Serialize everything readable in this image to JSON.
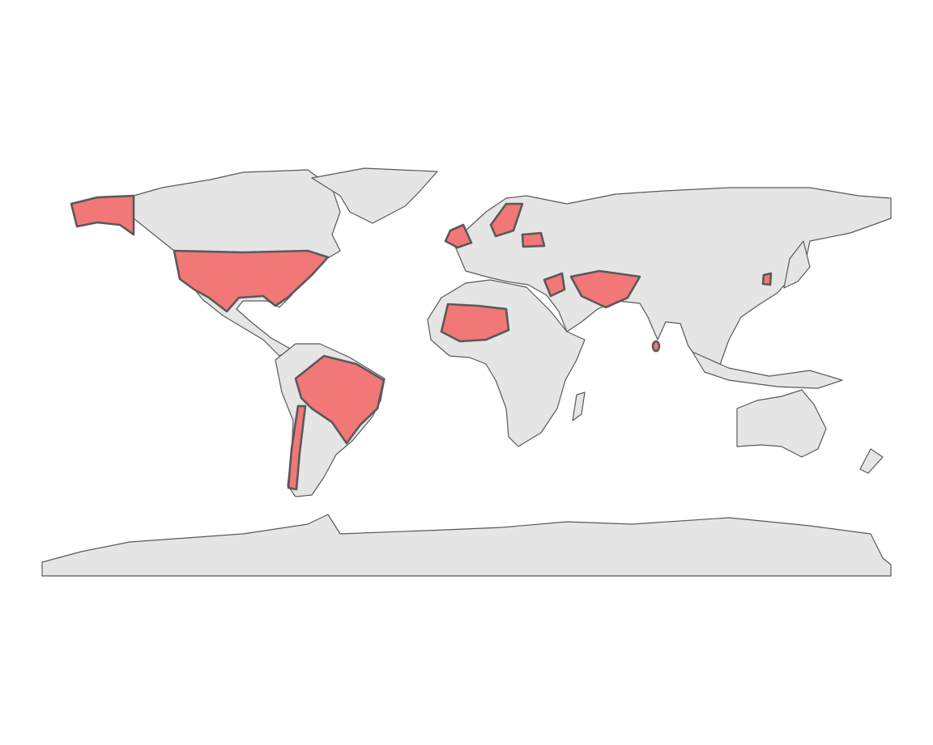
{
  "map": {
    "fill": "#e5e5e5",
    "highlight": "#f27777",
    "stroke": "#595959"
  }
}
